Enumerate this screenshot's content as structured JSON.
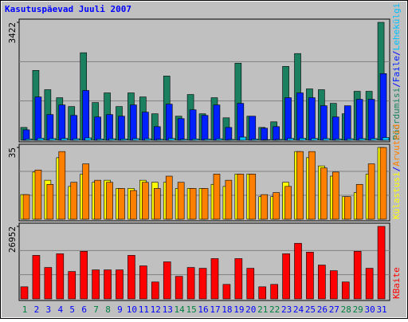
{
  "chart_data": {
    "type": "bar",
    "title": "Kasutuspäevad Juuli 2007",
    "categories": [
      "1",
      "2",
      "3",
      "4",
      "5",
      "6",
      "7",
      "8",
      "9",
      "10",
      "11",
      "12",
      "13",
      "14",
      "15",
      "16",
      "17",
      "18",
      "19",
      "20",
      "21",
      "22",
      "23",
      "24",
      "25",
      "26",
      "27",
      "28",
      "29",
      "30",
      "31"
    ],
    "category_colors": [
      "#008040",
      "#0000ff",
      "#0000ff",
      "#0000ff",
      "#0000ff",
      "#0000ff",
      "#008040",
      "#008040",
      "#0000ff",
      "#0000ff",
      "#0000ff",
      "#0000ff",
      "#0000ff",
      "#008040",
      "#008040",
      "#0000ff",
      "#0000ff",
      "#0000ff",
      "#0000ff",
      "#0000ff",
      "#008040",
      "#008040",
      "#0000ff",
      "#0000ff",
      "#0000ff",
      "#0000ff",
      "#0000ff",
      "#008040",
      "#008040",
      "#0000ff",
      "#0000ff"
    ],
    "legend_separator": "/",
    "grid_divisions": 3,
    "panels": [
      {
        "ylim": [
          0,
          3422
        ],
        "yticks": [
          3422
        ],
        "series": [
          {
            "name": "Pöördumisi",
            "color": "#1a8060",
            "values": [
              373,
              2027,
              1468,
              1235,
              979,
              2540,
              1095,
              1375,
              979,
              1375,
              1258,
              769,
              1864,
              699,
              1328,
              769,
              1235,
              652,
              2237,
              699,
              373,
              536,
              2144,
              2516,
              1491,
              1468,
              1072,
              769,
              1421,
              1421,
              3422
            ]
          },
          {
            "name": "Faile",
            "color": "#0020ff",
            "values": [
              303,
              1258,
              746,
              1025,
              722,
              1445,
              676,
              746,
              699,
              1025,
              816,
              396,
              1049,
              629,
              885,
              722,
              1025,
              373,
              1072,
              699,
              350,
              396,
              1235,
              1375,
              1235,
              1002,
              676,
              1002,
              1188,
              1188,
              1934
            ]
          },
          {
            "name": "Lehekülgi",
            "color": "#00c0ff",
            "values": [
              40,
              60,
              50,
              55,
              45,
              70,
              40,
              45,
              40,
              50,
              45,
              30,
              55,
              30,
              40,
              35,
              45,
              25,
              93,
              35,
              20,
              25,
              55,
              60,
              55,
              50,
              40,
              45,
              50,
              50,
              80
            ]
          }
        ]
      },
      {
        "ylim": [
          0,
          35
        ],
        "yticks": [
          35
        ],
        "series": [
          {
            "name": "Külastusi",
            "color": "#ffff00",
            "values": [
              12,
              23,
              19,
              30,
              16,
              22,
              18,
              19,
              15,
              15,
              19,
              18,
              18,
              15,
              15,
              15,
              17,
              16,
              22,
              22,
              11,
              11,
              18,
              33,
              30,
              26,
              21,
              11,
              13,
              22,
              35
            ]
          },
          {
            "name": "Arvuteid",
            "color": "#ff8000",
            "values": [
              12,
              24,
              17,
              33,
              18,
              27,
              19,
              18,
              15,
              14,
              18,
              15,
              21,
              18,
              15,
              15,
              22,
              19,
              22,
              22,
              12,
              13,
              16,
              33,
              33,
              25,
              23,
              11,
              17,
              27,
              35
            ]
          }
        ]
      },
      {
        "ylim": [
          0,
          26952
        ],
        "yticks": [
          26952
        ],
        "series": [
          {
            "name": "KBaite",
            "color": "#ff0000",
            "values": [
              4492,
              16171,
              11679,
              16770,
              10182,
              17668,
              10781,
              10781,
              10781,
              16171,
              12278,
              6289,
              13775,
              8385,
              11679,
              11379,
              14973,
              5390,
              14973,
              11379,
              4492,
              5390,
              16770,
              20663,
              17369,
              12577,
              10481,
              6289,
              17668,
              11379,
              26952
            ]
          }
        ]
      }
    ]
  }
}
